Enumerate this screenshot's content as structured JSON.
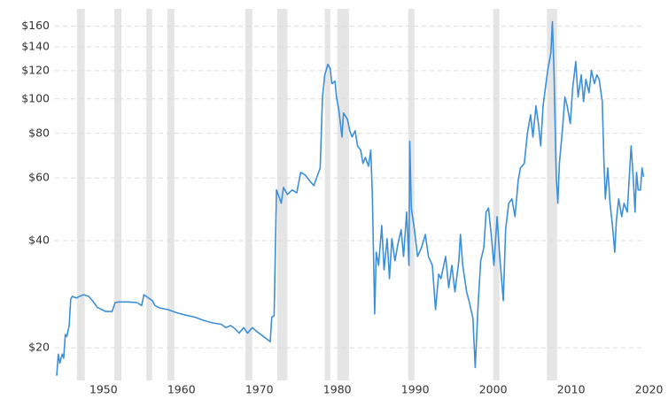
{
  "chart_data": {
    "type": "line",
    "log_y": true,
    "grid": true,
    "xlim": [
      1944,
      2020.5
    ],
    "ylim": [
      16.2,
      179
    ],
    "xticks": [
      1950,
      1960,
      1970,
      1980,
      1990,
      2000,
      2010,
      2020
    ],
    "yticks": [
      {
        "value": 20,
        "label": "$20"
      },
      {
        "value": 40,
        "label": "$40"
      },
      {
        "value": 60,
        "label": "$60"
      },
      {
        "value": 80,
        "label": "$80"
      },
      {
        "value": 100,
        "label": "$100"
      },
      {
        "value": 120,
        "label": "$120"
      },
      {
        "value": 140,
        "label": "$140"
      },
      {
        "value": 160,
        "label": "$160"
      }
    ],
    "band_color": "#e5e5e5",
    "bands": [
      [
        1946.6,
        1947.6
      ],
      [
        1951.4,
        1952.3
      ],
      [
        1955.5,
        1956.25
      ],
      [
        1958.2,
        1959.1
      ],
      [
        1968.2,
        1969.1
      ],
      [
        1972.3,
        1973.6
      ],
      [
        1978.4,
        1979.1
      ],
      [
        1980.0,
        1981.5
      ],
      [
        1989.1,
        1989.9
      ],
      [
        2000.0,
        2000.8
      ],
      [
        2006.9,
        2008.2
      ]
    ],
    "series": [
      {
        "color": "#3d8fd8",
        "x": [
          1944.0,
          1944.2,
          1944.4,
          1944.7,
          1944.9,
          1945.1,
          1945.3,
          1945.6,
          1945.8,
          1946.0,
          1946.5,
          1946.9,
          1947.5,
          1948.1,
          1948.6,
          1949.2,
          1949.8,
          1950.3,
          1951.1,
          1951.5,
          1952.0,
          1953.2,
          1954.3,
          1954.9,
          1955.2,
          1955.8,
          1956.3,
          1956.6,
          1957.2,
          1958.3,
          1959.4,
          1960.6,
          1961.7,
          1962.8,
          1964.0,
          1965.1,
          1965.7,
          1966.3,
          1966.8,
          1967.4,
          1968.0,
          1968.5,
          1969.1,
          1969.7,
          1970.8,
          1971.4,
          1971.6,
          1971.9,
          1972.2,
          1972.5,
          1972.8,
          1973.1,
          1973.6,
          1974.2,
          1974.8,
          1975.3,
          1975.9,
          1976.5,
          1977.0,
          1977.4,
          1977.8,
          1978.1,
          1978.4,
          1978.8,
          1979.1,
          1979.3,
          1979.7,
          1979.9,
          1980.2,
          1980.6,
          1980.8,
          1981.3,
          1981.6,
          1981.9,
          1982.3,
          1982.6,
          1983.0,
          1983.3,
          1983.6,
          1984.0,
          1984.3,
          1984.5,
          1984.8,
          1985.0,
          1985.3,
          1985.7,
          1986.0,
          1986.4,
          1986.7,
          1987.0,
          1987.4,
          1987.8,
          1988.2,
          1988.5,
          1988.9,
          1989.2,
          1989.3,
          1989.5,
          1989.9,
          1990.3,
          1990.8,
          1991.3,
          1991.7,
          1992.2,
          1992.6,
          1993.0,
          1993.3,
          1993.9,
          1994.3,
          1994.7,
          1995.1,
          1995.6,
          1995.8,
          1996.1,
          1996.6,
          1996.9,
          1997.4,
          1997.7,
          1998.1,
          1998.4,
          1998.8,
          1999.1,
          1999.4,
          1999.8,
          2000.1,
          2000.5,
          2000.8,
          2001.3,
          2001.6,
          2002.0,
          2002.4,
          2002.8,
          2003.2,
          2003.5,
          2004.0,
          2004.4,
          2004.8,
          2005.1,
          2005.5,
          2005.8,
          2006.1,
          2006.4,
          2006.7,
          2007.0,
          2007.4,
          2007.6,
          2007.8,
          2008.1,
          2008.3,
          2008.5,
          2008.9,
          2009.2,
          2009.5,
          2009.9,
          2010.2,
          2010.6,
          2010.9,
          2011.3,
          2011.6,
          2011.9,
          2012.3,
          2012.6,
          2013.0,
          2013.3,
          2013.6,
          2014.0,
          2014.2,
          2014.4,
          2014.7,
          2015.0,
          2015.3,
          2015.6,
          2015.8,
          2016.1,
          2016.5,
          2016.8,
          2017.2,
          2017.5,
          2017.7,
          2018.0,
          2018.2,
          2018.4,
          2018.6,
          2018.9,
          2019.1,
          2019.3
        ],
        "values": [
          16.7,
          19.2,
          18.1,
          19.2,
          18.7,
          21.8,
          21.5,
          23.1,
          27.4,
          27.9,
          27.6,
          27.9,
          28.2,
          27.9,
          27.1,
          26.0,
          25.6,
          25.3,
          25.3,
          26.8,
          26.9,
          26.9,
          26.8,
          26.3,
          28.2,
          27.6,
          27.1,
          26.3,
          25.9,
          25.6,
          25.1,
          24.7,
          24.4,
          23.9,
          23.5,
          23.3,
          22.8,
          23.1,
          22.7,
          22.0,
          22.8,
          22.0,
          22.8,
          22.2,
          21.3,
          20.8,
          24.4,
          24.6,
          55.5,
          53.3,
          50.9,
          56.4,
          53.9,
          55.5,
          54.5,
          62.2,
          61.1,
          58.7,
          57.1,
          60.4,
          64.0,
          101.2,
          116.8,
          125.1,
          121.6,
          110.3,
          112.2,
          101.2,
          92.9,
          78.2,
          91.3,
          87.7,
          81.4,
          78.2,
          81.4,
          73.8,
          71.8,
          65.9,
          68.5,
          64.7,
          71.8,
          53.9,
          24.9,
          37.1,
          34.1,
          44.1,
          33.1,
          40.5,
          31.3,
          40.5,
          35.1,
          39.3,
          42.9,
          36.1,
          48.1,
          34.1,
          76.0,
          49.4,
          42.9,
          36.1,
          38.2,
          41.6,
          36.1,
          34.1,
          25.6,
          32.2,
          31.3,
          36.1,
          29.5,
          34.1,
          28.7,
          35.1,
          41.6,
          34.1,
          28.7,
          27.1,
          24.2,
          17.6,
          27.1,
          35.1,
          38.2,
          48.1,
          49.4,
          40.5,
          34.1,
          46.7,
          37.1,
          27.1,
          42.9,
          50.9,
          52.4,
          46.7,
          58.7,
          64.0,
          65.9,
          80.5,
          90.2,
          78.2,
          95.6,
          85.2,
          73.8,
          95.6,
          107.2,
          120.2,
          134.8,
          164.7,
          120.2,
          60.4,
          50.9,
          65.9,
          82.8,
          101.2,
          95.6,
          85.2,
          107.2,
          127.3,
          101.2,
          116.8,
          98.3,
          113.5,
          104.1,
          120.2,
          110.3,
          116.8,
          113.5,
          98.3,
          67.8,
          52.4,
          64.0,
          50.9,
          44.1,
          37.1,
          45.4,
          52.4,
          46.7,
          50.9,
          48.1,
          62.2,
          73.8,
          58.7,
          48.1,
          62.2,
          55.5,
          55.5,
          64.0,
          60.4
        ]
      }
    ]
  }
}
